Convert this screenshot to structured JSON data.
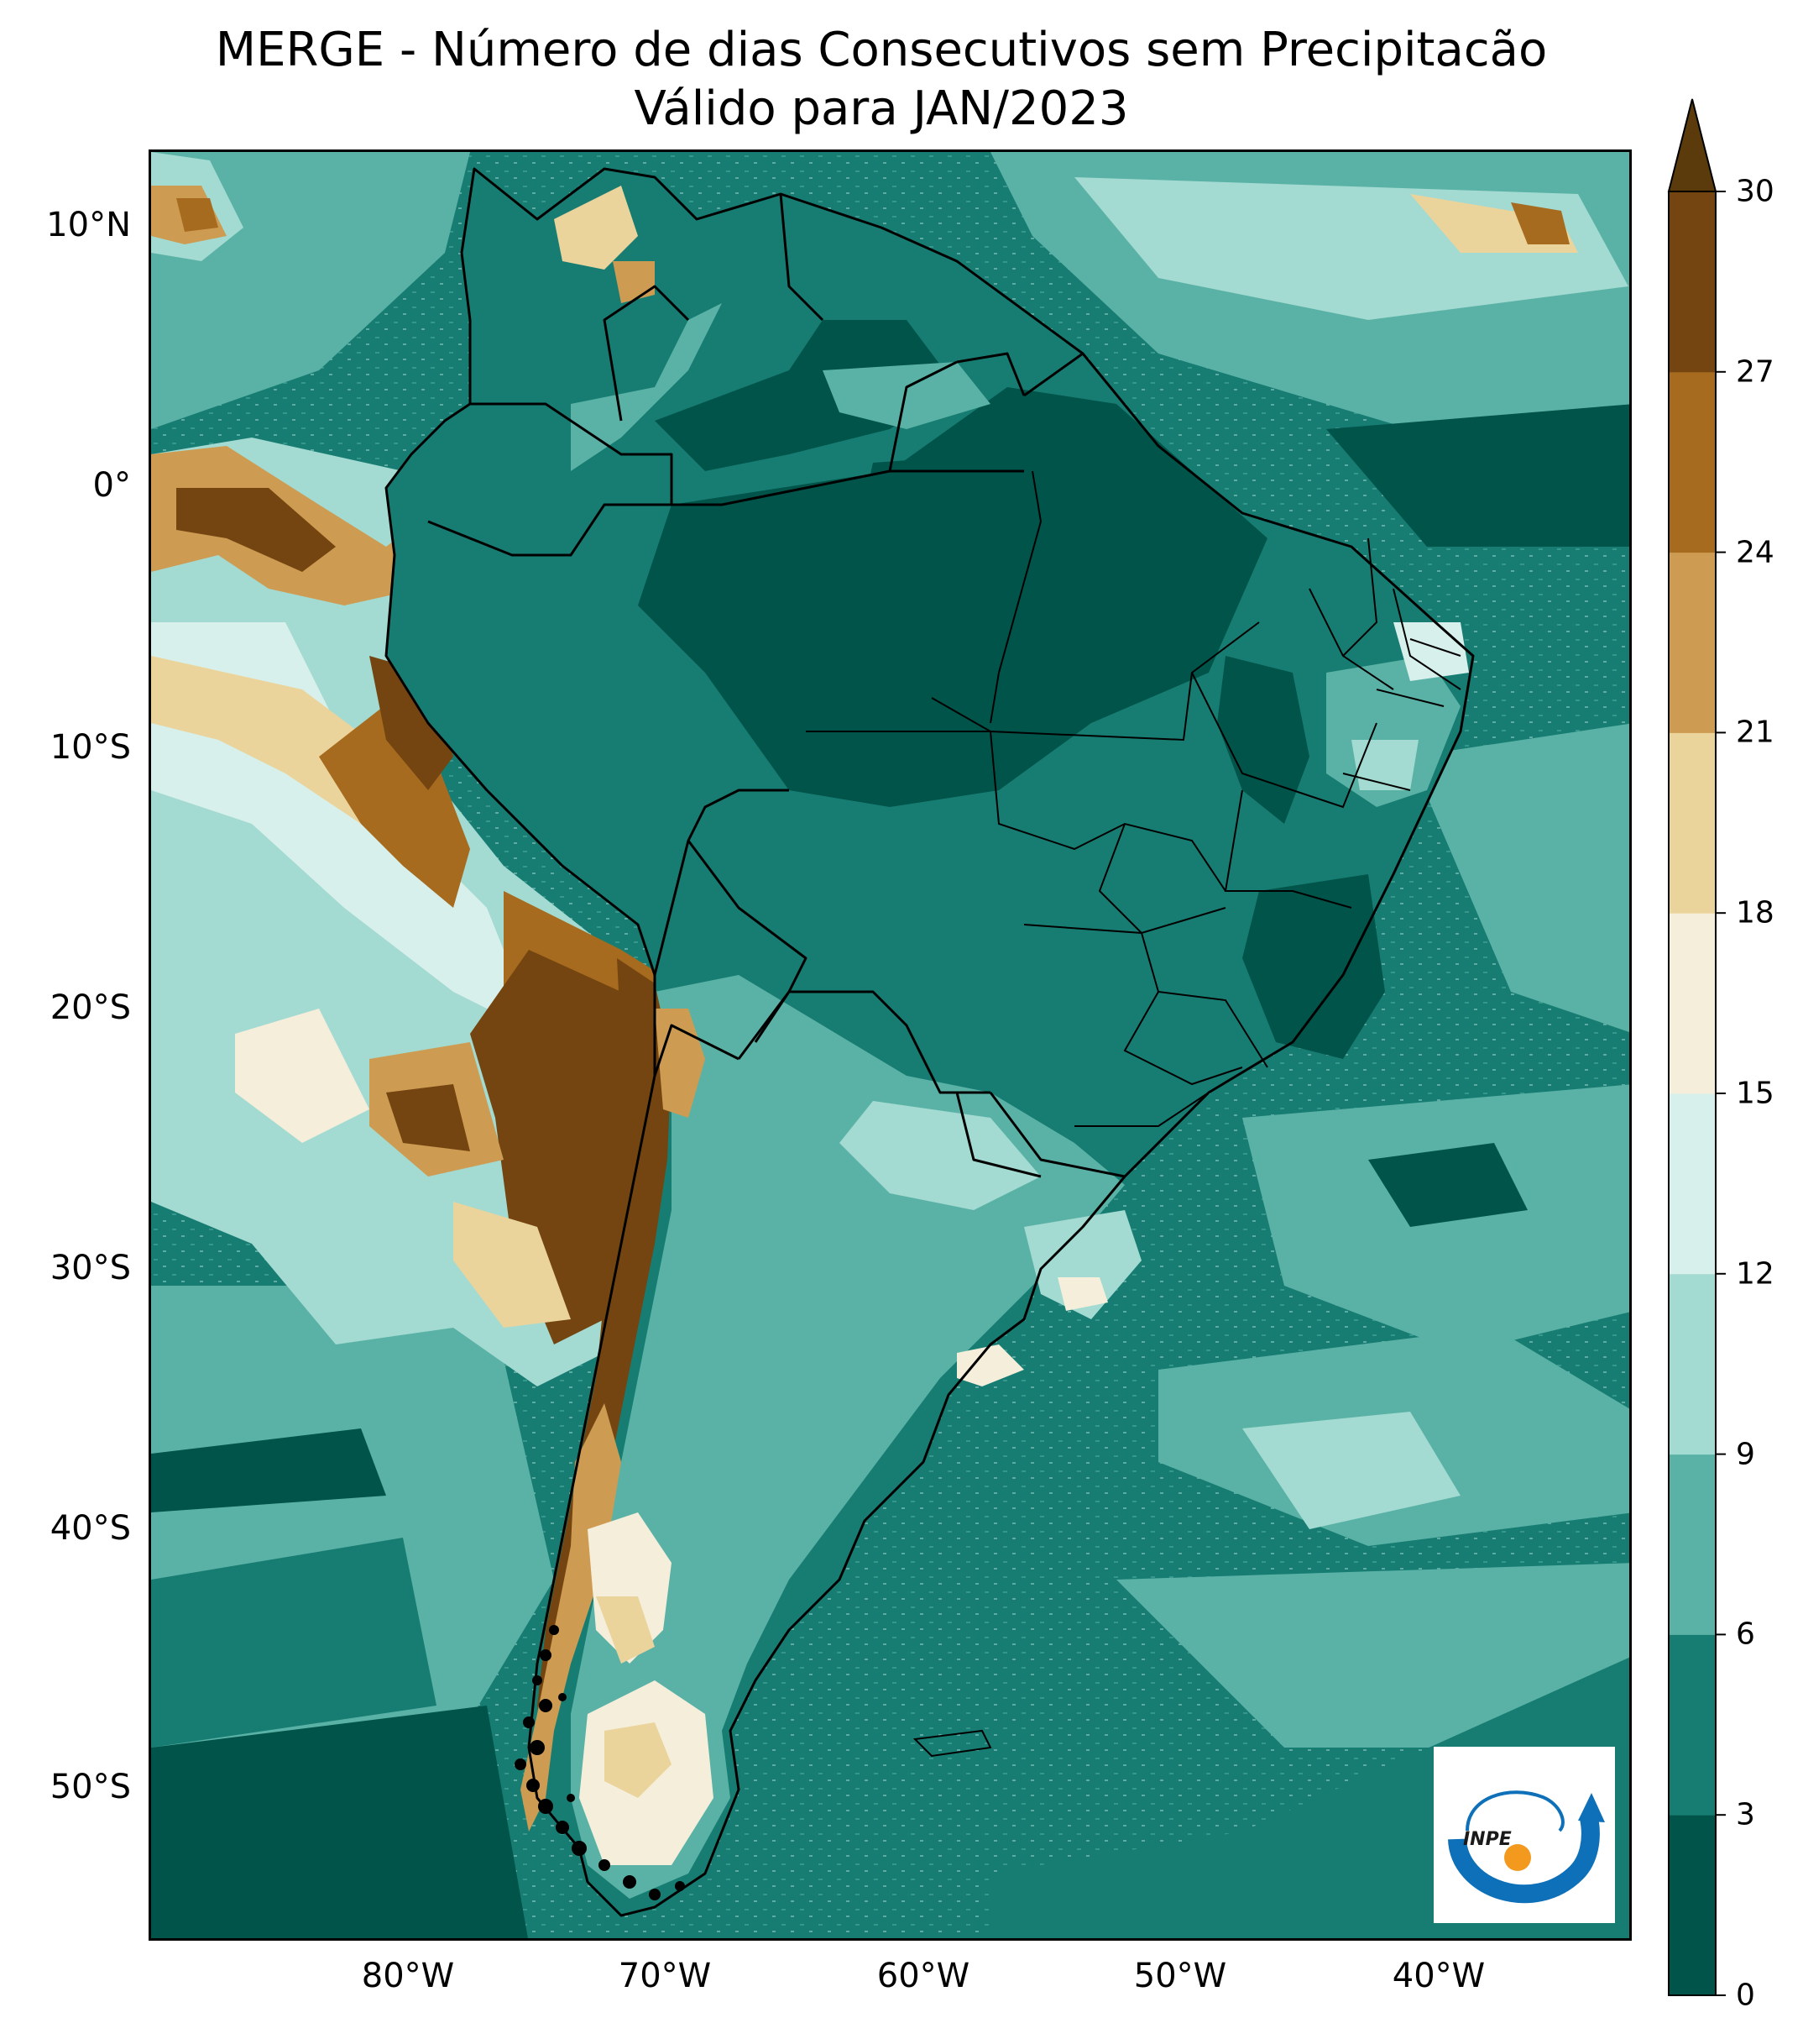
{
  "title_line_1": "MERGE - Número de dias Consecutivos sem Precipitacão",
  "title_line_2": "Válido para JAN/2023",
  "latitude_ticks": [
    "10°N",
    "0°",
    "10°S",
    "20°S",
    "30°S",
    "40°S",
    "50°S"
  ],
  "longitude_ticks": [
    "80°W",
    "70°W",
    "60°W",
    "50°W",
    "40°W"
  ],
  "map_extent": {
    "lon_min": -89.5,
    "lon_max": -31.5,
    "lat_min": -56.5,
    "lat_max": 13.5
  },
  "colorbar": {
    "ticks": [
      "0",
      "3",
      "6",
      "9",
      "12",
      "15",
      "18",
      "21",
      "24",
      "27",
      "30"
    ],
    "extend": "max",
    "colors": [
      "#01544a",
      "#177d73",
      "#5ab2a6",
      "#a3dad1",
      "#d8f0ec",
      "#f5eedb",
      "#ebd49c",
      "#cd9c52",
      "#a66b1f",
      "#744510",
      "#5b3a0b"
    ]
  },
  "logo": {
    "text": "INPE"
  }
}
